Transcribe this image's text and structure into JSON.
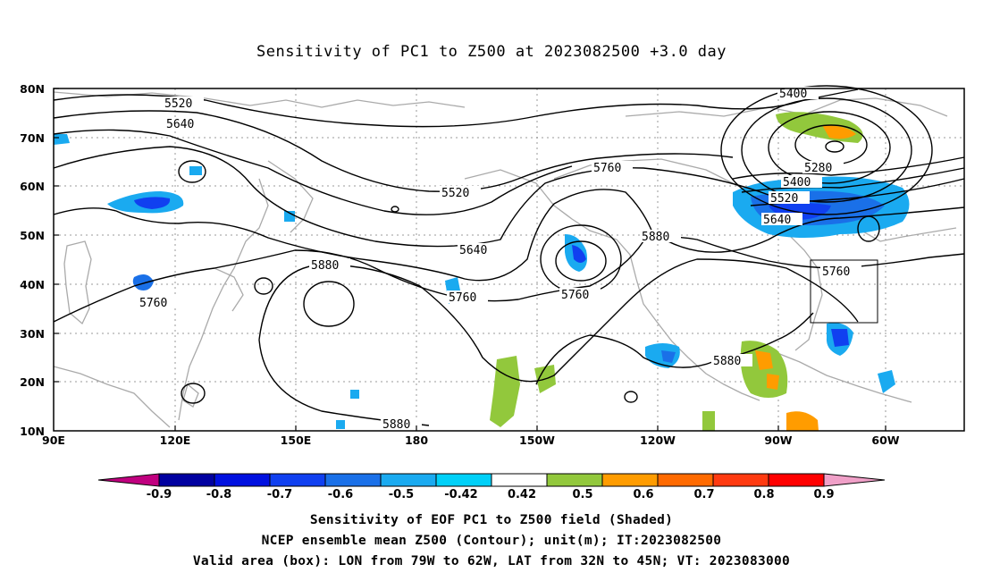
{
  "title": "Sensitivity of PC1 to Z500 at 2023082500 +3.0 day",
  "axes": {
    "lat_labels": [
      "80N",
      "70N",
      "60N",
      "50N",
      "40N",
      "30N",
      "20N",
      "10N"
    ],
    "lon_labels": [
      "90E",
      "120E",
      "150E",
      "180",
      "150W",
      "120W",
      "90W",
      "60W"
    ]
  },
  "contour_labels": [
    "5400",
    "5520",
    "5640",
    "5760",
    "5880",
    "5280"
  ],
  "colorbar": {
    "levels": [
      "-0.9",
      "-0.8",
      "-0.7",
      "-0.6",
      "-0.5",
      "-0.42",
      "0.42",
      "0.5",
      "0.6",
      "0.7",
      "0.8",
      "0.9"
    ],
    "colors": [
      "#c0007f",
      "#0000a0",
      "#0010e0",
      "#1040f0",
      "#1a70e8",
      "#1aaaf0",
      "#00d0f8",
      "#ffffff",
      "#92c83c",
      "#ff9c00",
      "#ff6a00",
      "#ff3a10",
      "#ff0000",
      "#f0a0c8"
    ]
  },
  "footer": {
    "line1": "Sensitivity of EOF PC1 to Z500 field (Shaded)",
    "line2": "NCEP ensemble mean Z500 (Contour); unit(m); IT:2023082500",
    "line3": "Valid area (box): LON from 79W to 62W, LAT from 32N to 45N; VT: 2023083000"
  }
}
